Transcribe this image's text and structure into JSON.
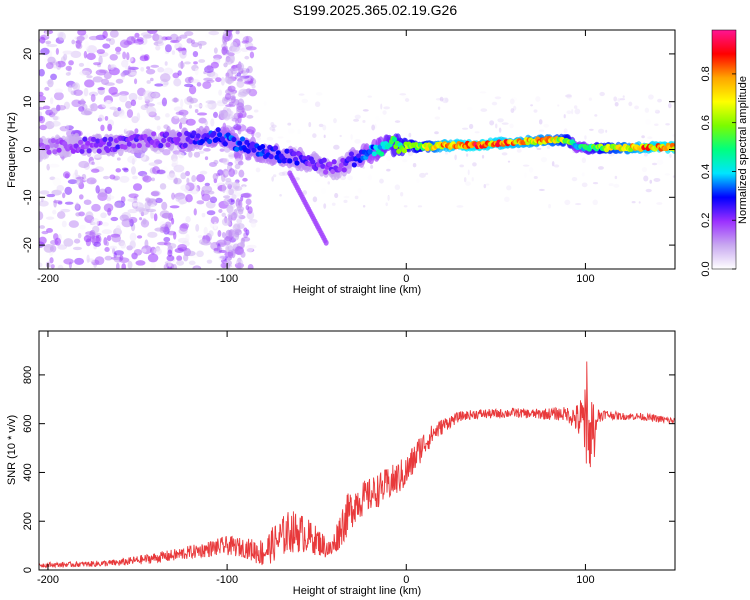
{
  "title": "S199.2025.365.02.19.G26",
  "chart_data": [
    {
      "type": "heatmap",
      "title": "S199.2025.365.02.19.G26",
      "xlabel": "Height of straight line (km)",
      "ylabel": "Frequency (Hz)",
      "xlim": [
        -205,
        150
      ],
      "ylim": [
        -25,
        25
      ],
      "xticks": [
        -200,
        -100,
        0,
        100
      ],
      "yticks": [
        -20,
        -10,
        0,
        10,
        20
      ],
      "ridge": {
        "x": [
          -200,
          -180,
          -160,
          -140,
          -120,
          -105,
          -95,
          -80,
          -60,
          -45,
          -38,
          -30,
          -20,
          -10,
          0,
          10,
          20,
          40,
          60,
          80,
          90,
          95,
          100,
          110,
          130,
          150
        ],
        "freq": [
          0.5,
          1.0,
          1.0,
          2.0,
          2.0,
          3.0,
          1.5,
          -0.5,
          -2.0,
          -3.5,
          -4.0,
          -2.0,
          -0.5,
          1.0,
          0.8,
          0.5,
          0.8,
          1.0,
          1.5,
          2.0,
          2.0,
          0.5,
          0.3,
          0.3,
          0.4,
          0.5
        ],
        "amplitude": [
          0.15,
          0.2,
          0.22,
          0.2,
          0.25,
          0.3,
          0.3,
          0.28,
          0.25,
          0.2,
          0.2,
          0.25,
          0.35,
          0.45,
          0.55,
          0.6,
          0.75,
          0.8,
          0.75,
          0.7,
          0.6,
          0.4,
          0.45,
          0.6,
          0.75,
          0.8
        ]
      },
      "colorbar": {
        "label": "Normalized spectral amplitude",
        "range": [
          0,
          0.98
        ],
        "ticks": [
          "0.0",
          "0.2",
          "0.4",
          "0.6",
          "0.8"
        ],
        "tick_values": [
          0.0,
          0.2,
          0.4,
          0.6,
          0.8
        ],
        "colors": [
          "#ffffff",
          "#c8a8f0",
          "#9b30ff",
          "#0000ff",
          "#00e5ff",
          "#00ff7f",
          "#7cfc00",
          "#ffff00",
          "#ffa500",
          "#ff0000",
          "#ff1493"
        ]
      }
    },
    {
      "type": "line",
      "xlabel": "Height of straight line (km)",
      "ylabel": "SNR (10 * v/v)",
      "xlim": [
        -205,
        150
      ],
      "ylim": [
        0,
        980
      ],
      "xticks": [
        -200,
        -100,
        0,
        100
      ],
      "yticks": [
        0,
        200,
        400,
        600,
        800
      ],
      "series": [
        {
          "name": "SNR",
          "color": "#e8393b",
          "x": [
            -205,
            -190,
            -175,
            -160,
            -145,
            -130,
            -115,
            -100,
            -90,
            -80,
            -72,
            -65,
            -58,
            -50,
            -42,
            -35,
            -28,
            -22,
            -15,
            -8,
            0,
            8,
            15,
            22,
            30,
            40,
            50,
            60,
            70,
            80,
            90,
            95,
            100,
            103,
            105,
            110,
            120,
            130,
            140,
            150
          ],
          "mean": [
            20,
            22,
            25,
            30,
            45,
            60,
            80,
            100,
            90,
            70,
            120,
            160,
            150,
            120,
            80,
            200,
            280,
            300,
            330,
            360,
            400,
            500,
            560,
            600,
            630,
            640,
            640,
            645,
            640,
            640,
            640,
            620,
            600,
            560,
            620,
            640,
            630,
            630,
            620,
            610
          ],
          "noise": [
            10,
            10,
            12,
            15,
            20,
            25,
            30,
            40,
            40,
            60,
            80,
            90,
            80,
            60,
            40,
            90,
            80,
            70,
            70,
            70,
            70,
            60,
            40,
            30,
            20,
            20,
            20,
            20,
            20,
            25,
            30,
            60,
            150,
            230,
            60,
            20,
            15,
            15,
            15,
            15
          ]
        }
      ]
    }
  ]
}
